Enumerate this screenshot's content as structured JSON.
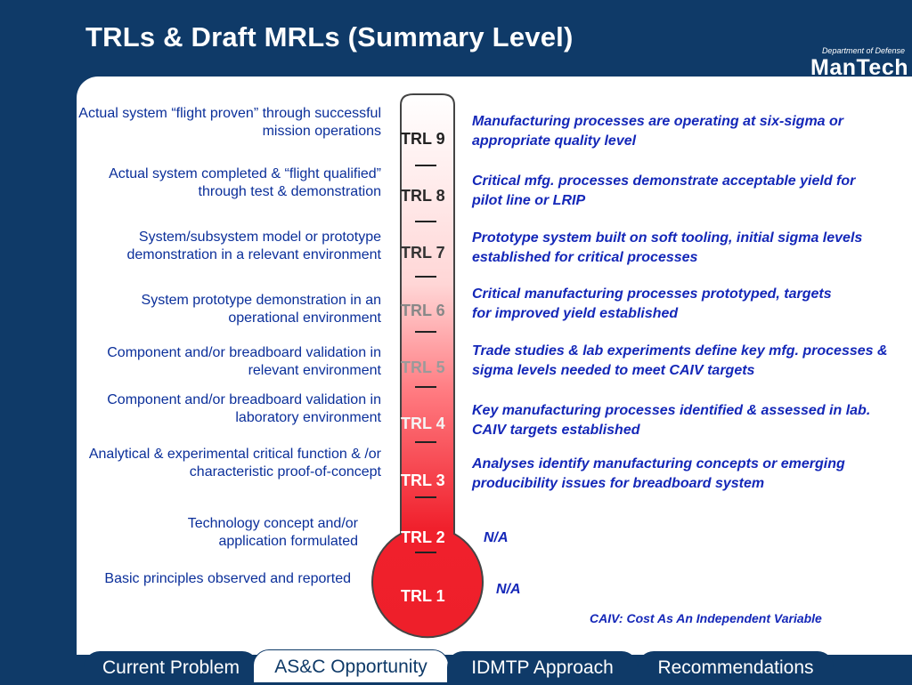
{
  "header": {
    "title": "TRLs & Draft MRLs  (Summary Level)",
    "dod_label": "Department of Defense",
    "brand": "ManTech"
  },
  "left_descriptions": [
    "Actual system “flight proven” through successful mission operations",
    "Actual system completed & “flight qualified” through test & demonstration",
    "System/subsystem model or prototype demonstration in a relevant environment",
    "System prototype demonstration in an operational environment",
    "Component and/or breadboard validation in relevant environment",
    "Component and/or breadboard validation in laboratory environment",
    "Analytical & experimental critical function & /or characteristic proof-of-concept",
    "Technology concept and/or application formulated",
    "Basic principles observed and reported"
  ],
  "trl_labels": [
    "TRL 9",
    "TRL 8",
    "TRL 7",
    "TRL 6",
    "TRL 5",
    "TRL 4",
    "TRL 3",
    "TRL 2",
    "TRL 1"
  ],
  "right_descriptions": [
    "Manufacturing processes are operating at six-sigma or appropriate quality level",
    "Critical mfg. processes demonstrate acceptable yield for pilot line or LRIP",
    "Prototype system built on soft tooling, initial sigma levels established for critical processes",
    "Critical manufacturing processes prototyped, targets for improved yield established",
    "Trade studies &  lab experiments define key mfg. processes & sigma levels needed to meet CAIV targets",
    "Key manufacturing processes identified & assessed in lab.  CAIV targets established",
    "Analyses identify manufacturing concepts or emerging producibility issues for breadboard system",
    "N/A",
    "N/A"
  ],
  "footnote": "CAIV:  Cost As An Independent Variable",
  "tabs": [
    {
      "label": "Current Problem"
    },
    {
      "label": "AS&C Opportunity"
    },
    {
      "label": "IDMTP Approach"
    },
    {
      "label": "Recommendations"
    }
  ],
  "colors": {
    "background": "#0f3a68",
    "left_text": "#0b2f9a",
    "right_text": "#1427b8",
    "thermometer_red": "#ee1f2a"
  }
}
